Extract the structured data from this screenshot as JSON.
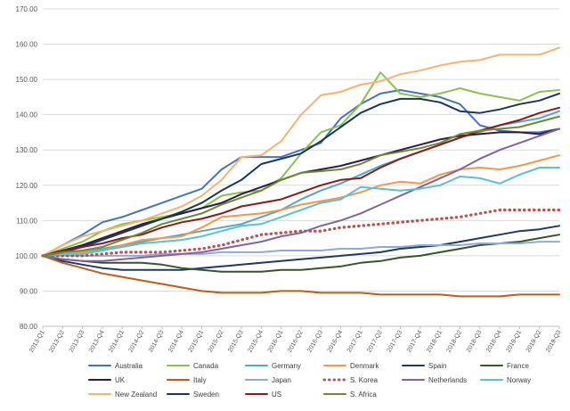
{
  "chart_data": {
    "type": "line",
    "title": "",
    "xlabel": "",
    "ylabel": "",
    "ylim": [
      80,
      170
    ],
    "yticks": [
      80,
      90,
      100,
      110,
      120,
      130,
      140,
      150,
      160,
      170
    ],
    "ytick_labels": [
      "80.00",
      "90.00",
      "100.00",
      "110.00",
      "120.00",
      "130.00",
      "140.00",
      "150.00",
      "160.00",
      "170.00"
    ],
    "gridlines": true,
    "legend_position": "bottom",
    "categories": [
      "2013-Q1",
      "2013-Q2",
      "2013-Q3",
      "2013-Q4",
      "2014-Q1",
      "2014-Q2",
      "2014-Q3",
      "2014-Q4",
      "2015-Q1",
      "2015-Q2",
      "2015-Q3",
      "2015-Q4",
      "2016-Q1",
      "2016-Q2",
      "2016-Q3",
      "2016-Q4",
      "2017-Q1",
      "2017-Q2",
      "2017-Q3",
      "2017-Q4",
      "2018-Q1",
      "2018-Q2",
      "2018-Q3",
      "2018-Q4",
      "2019-Q1",
      "2019-Q2",
      "2019-Q3"
    ],
    "series": [
      {
        "name": "Australia",
        "color": "#4472C4",
        "dash": "solid",
        "values": [
          100,
          103,
          106,
          109.5,
          111,
          113,
          115,
          117,
          119,
          124.5,
          128,
          128,
          128,
          130,
          132,
          139,
          143,
          146,
          147,
          146,
          145,
          143,
          137,
          135.5,
          135,
          135,
          136
        ]
      },
      {
        "name": "Canada",
        "color": "#8BC34A",
        "dash": "solid",
        "values": [
          100,
          102,
          104,
          107,
          109,
          110,
          111,
          112,
          113.5,
          117,
          118,
          118.5,
          122,
          129,
          135,
          137,
          143,
          152,
          146,
          145,
          146,
          147.5,
          146,
          145,
          144,
          146.5,
          147
        ]
      },
      {
        "name": "Germany",
        "color": "#4BACC6",
        "dash": "solid",
        "values": [
          100,
          100.5,
          101,
          102,
          103,
          104,
          105,
          106,
          107,
          108,
          109,
          111,
          113,
          116,
          118.5,
          120.5,
          123,
          125.5,
          127.5,
          129.5,
          131.5,
          133.5,
          135,
          137,
          138,
          139,
          141
        ]
      },
      {
        "name": "Denmark",
        "color": "#F79646",
        "dash": "solid",
        "values": [
          100,
          100.5,
          101,
          101.5,
          103,
          104.5,
          105,
          105.5,
          108,
          111,
          111.5,
          112,
          113,
          114.5,
          115.5,
          116.5,
          118,
          120,
          121,
          120.5,
          123,
          124.5,
          125,
          124.5,
          125.5,
          127,
          128.5
        ]
      },
      {
        "name": "Spain",
        "color": "#1F3864",
        "dash": "solid",
        "values": [
          100,
          98.5,
          97.5,
          96.5,
          96,
          96,
          96,
          96,
          96.5,
          97,
          97.5,
          98,
          98.5,
          99,
          99.5,
          100,
          100.5,
          101,
          102,
          102.5,
          103,
          104,
          105,
          106,
          107,
          107.5,
          108.5
        ]
      },
      {
        "name": "France",
        "color": "#375623",
        "dash": "solid",
        "values": [
          100,
          99,
          98.5,
          98,
          98,
          98,
          97.5,
          96.5,
          96,
          95.5,
          95.5,
          95.5,
          96,
          96,
          96.5,
          97,
          98,
          98.5,
          99.5,
          100,
          101,
          102,
          103,
          103.5,
          104,
          105,
          106
        ]
      },
      {
        "name": "UK",
        "color": "#2E1A47",
        "dash": "solid",
        "values": [
          100,
          101.5,
          103,
          105,
          107,
          109,
          110.5,
          112,
          113.5,
          115,
          117.5,
          119.5,
          121.5,
          123.5,
          124.5,
          125.5,
          127,
          128.5,
          130,
          131.5,
          133,
          134,
          134.5,
          135,
          135,
          134.5,
          136
        ]
      },
      {
        "name": "Italy",
        "color": "#C55A11",
        "dash": "solid",
        "values": [
          100,
          98,
          96.5,
          95,
          94,
          93,
          92,
          91,
          90,
          89.5,
          89.5,
          89.5,
          90,
          90,
          89.5,
          89.5,
          89.5,
          89,
          89,
          89,
          89,
          88.5,
          88.5,
          88.5,
          89,
          89,
          89
        ]
      },
      {
        "name": "Japan",
        "color": "#8EA9DB",
        "dash": "solid",
        "values": [
          100,
          100,
          100,
          100,
          100,
          100,
          100.5,
          100.5,
          100.5,
          101,
          101,
          101,
          101.5,
          101.5,
          101.5,
          102,
          102,
          102.5,
          102.5,
          103,
          103,
          103,
          103.5,
          103.5,
          103.5,
          104,
          104
        ]
      },
      {
        "name": "S. Korea",
        "color": "#C0504D",
        "dash": "dotted",
        "values": [
          100,
          100,
          100,
          100.5,
          101,
          101,
          101,
          101.5,
          102,
          103,
          104.5,
          106,
          106.5,
          107,
          107,
          108,
          108.5,
          109,
          109.5,
          110,
          110.5,
          111,
          112,
          113,
          113,
          113,
          113
        ]
      },
      {
        "name": "Netherlands",
        "color": "#8064A2",
        "dash": "solid",
        "values": [
          100,
          99,
          98.5,
          98.5,
          99,
          99.5,
          100,
          100.5,
          101,
          102,
          103,
          104,
          105.5,
          106.5,
          108.5,
          110,
          112,
          114.5,
          117,
          119.5,
          122,
          124.5,
          127.5,
          130,
          132,
          134,
          136
        ]
      },
      {
        "name": "Norway",
        "color": "#56C1D8",
        "dash": "solid",
        "values": [
          100,
          100.5,
          100.5,
          101.5,
          102.5,
          103.5,
          104,
          104.5,
          105.5,
          107,
          108.5,
          109,
          111,
          113,
          115,
          116,
          119.5,
          119,
          118.5,
          119,
          120,
          122.5,
          122,
          120.5,
          123,
          125,
          125
        ]
      },
      {
        "name": "New Zealand",
        "color": "#F8B26A",
        "dash": "solid",
        "values": [
          100,
          103,
          105.5,
          107,
          108.5,
          110,
          112,
          114,
          117,
          121.5,
          128,
          128.5,
          132.5,
          140,
          145.5,
          146.5,
          148.5,
          149.5,
          151.5,
          152.5,
          154,
          155,
          155.5,
          157,
          157,
          157,
          159
        ]
      },
      {
        "name": "Sweden",
        "color": "#17375E",
        "dash": "solid",
        "values": [
          100,
          101,
          102.5,
          104.5,
          106.5,
          108.5,
          110.5,
          112.5,
          115,
          118.5,
          121.5,
          126,
          127.5,
          129,
          132.5,
          136.5,
          140.5,
          143,
          144.5,
          144.5,
          143.5,
          141,
          140.5,
          141.5,
          143,
          144,
          146
        ]
      },
      {
        "name": "US",
        "color": "#8B1A1A",
        "dash": "solid",
        "values": [
          100,
          101.5,
          102.5,
          103.5,
          105,
          106,
          108,
          109.5,
          110.5,
          112,
          114,
          115,
          116,
          118,
          120,
          121.5,
          122,
          125,
          127.5,
          129.5,
          131.5,
          133.5,
          135.5,
          137,
          138.5,
          140.5,
          142
        ]
      },
      {
        "name": "S. Africa",
        "color": "#6E8B2E",
        "dash": "solid",
        "values": [
          100,
          101,
          101.5,
          102.5,
          104.5,
          106.5,
          109,
          110.5,
          112,
          114.5,
          116.5,
          118.5,
          121.5,
          123.5,
          124,
          124.5,
          126,
          128.5,
          129.5,
          130.5,
          132,
          134.5,
          135.5,
          136,
          136.5,
          138,
          139.5
        ]
      }
    ]
  }
}
